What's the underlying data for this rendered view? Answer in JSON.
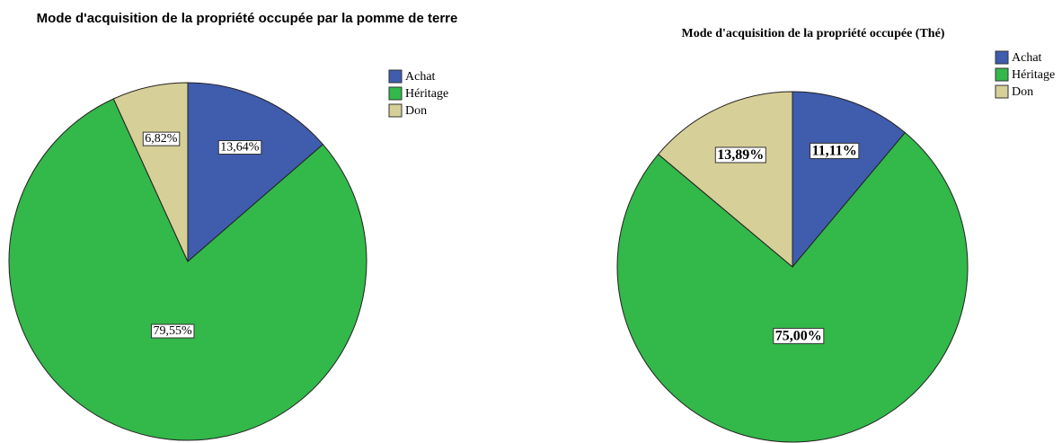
{
  "chart_data": [
    {
      "type": "pie",
      "title": "Mode d'acquisition de la propriété occupée par la pomme de terre",
      "categories": [
        "Achat",
        "Héritage",
        "Don"
      ],
      "values": [
        13.64,
        79.55,
        6.82
      ],
      "value_labels": [
        "13,64%",
        "79,55%",
        "6,82%"
      ],
      "colors": [
        "#3f5cad",
        "#33b84a",
        "#d6cf97"
      ],
      "legend": "right"
    },
    {
      "type": "pie",
      "title": "Mode d'acquisition de la propriété occupée (Thé)",
      "categories": [
        "Achat",
        "Héritage",
        "Don"
      ],
      "values": [
        11.11,
        75.0,
        13.89
      ],
      "value_labels": [
        "11,11%",
        "75,00%",
        "13,89%"
      ],
      "colors": [
        "#3f5cad",
        "#33b84a",
        "#d6cf97"
      ],
      "legend": "right"
    }
  ]
}
